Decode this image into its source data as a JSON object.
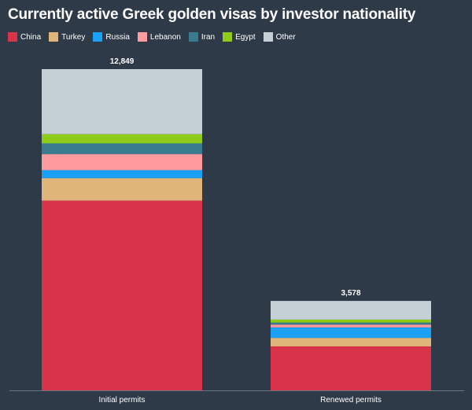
{
  "chart_data": {
    "type": "bar",
    "stacked": true,
    "title": "Currently active Greek golden visas by investor nationality",
    "xlabel": "",
    "ylabel": "",
    "legend_position": "top-left",
    "grid": false,
    "categories": [
      "Initial permits",
      "Renewed permits"
    ],
    "totals": [
      "12,849",
      "3,578"
    ],
    "series": [
      {
        "name": "China",
        "color": "#d9334a",
        "values": [
          7590,
          1760
        ]
      },
      {
        "name": "Turkey",
        "color": "#e0b57a",
        "values": [
          900,
          340
        ]
      },
      {
        "name": "Russia",
        "color": "#1aa1f5",
        "values": [
          320,
          420
        ]
      },
      {
        "name": "Lebanon",
        "color": "#ff9b9f",
        "values": [
          640,
          110
        ]
      },
      {
        "name": "Iran",
        "color": "#3a7a8e",
        "values": [
          430,
          80
        ]
      },
      {
        "name": "Egypt",
        "color": "#8ecc19",
        "values": [
          370,
          120
        ]
      },
      {
        "name": "Other",
        "color": "#c4d0d6",
        "values": [
          2599,
          748
        ]
      }
    ]
  }
}
